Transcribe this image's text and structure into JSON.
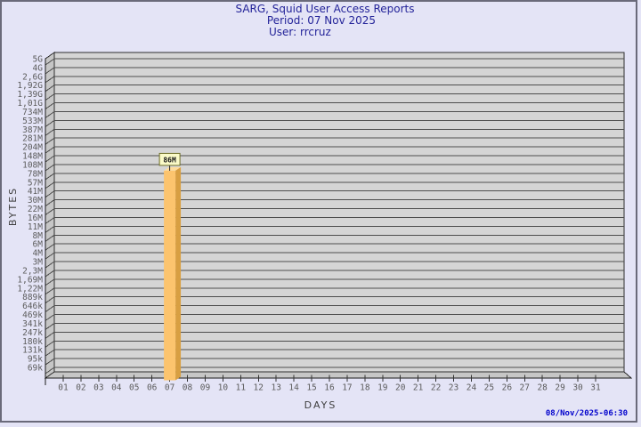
{
  "page": {
    "bg": "#E4E4F6",
    "border_color": "#6A6A7A"
  },
  "header": {
    "title": "SARG, Squid User Access Reports",
    "period_line": "Period: 07 Nov 2025",
    "user_line": "User: rrcruz",
    "text_color": "#232399"
  },
  "footer": {
    "generated_timestamp": "08/Nov/2025-06:30",
    "text_color": "#0000CC"
  },
  "chart_data": {
    "type": "bar",
    "title": "SARG, Squid User Access Reports",
    "subtitle": [
      "Period: 07 Nov 2025",
      "User: rrcruz"
    ],
    "xlabel": "DAYS",
    "ylabel": "BYTES",
    "y_scale": "log",
    "grid": true,
    "legend": false,
    "style": "3d-bar",
    "y_axis_top": "5G",
    "y_axis_bottom": "69k",
    "y_tick_labels": [
      "5G",
      "4G",
      "2,6G",
      "1,92G",
      "1,39G",
      "1,01G",
      "734M",
      "533M",
      "387M",
      "281M",
      "204M",
      "148M",
      "108M",
      "78M",
      "57M",
      "41M",
      "30M",
      "22M",
      "16M",
      "11M",
      "8M",
      "6M",
      "4M",
      "3M",
      "2,3M",
      "1,69M",
      "1,22M",
      "889k",
      "646k",
      "469k",
      "341k",
      "247k",
      "180k",
      "131k",
      "95k",
      "69k"
    ],
    "x_tick_labels": [
      "01",
      "02",
      "03",
      "04",
      "05",
      "06",
      "07",
      "08",
      "09",
      "10",
      "11",
      "12",
      "13",
      "14",
      "15",
      "16",
      "17",
      "18",
      "19",
      "20",
      "21",
      "22",
      "23",
      "24",
      "25",
      "26",
      "27",
      "28",
      "29",
      "30",
      "31"
    ],
    "bars": [
      {
        "day": "07",
        "value_label": "86M",
        "value_bytes": 86000000
      }
    ],
    "colors": {
      "bar_front": "#FCC46E",
      "bar_side": "#D89F42",
      "bar_top": "#FEDC9C",
      "bar_label_bg": "#FAFAC8",
      "bar_label_border": "#6E6E28",
      "panel_bg": "#D5D5D5",
      "wall_bg": "#C6C6C6",
      "gridline": "#4E4E4E",
      "panel_edge": "#2E2E2E",
      "axis": "#1A1A1A",
      "tick_text": "#5C5C5C",
      "axis_title_text": "#3F3F3F"
    }
  }
}
